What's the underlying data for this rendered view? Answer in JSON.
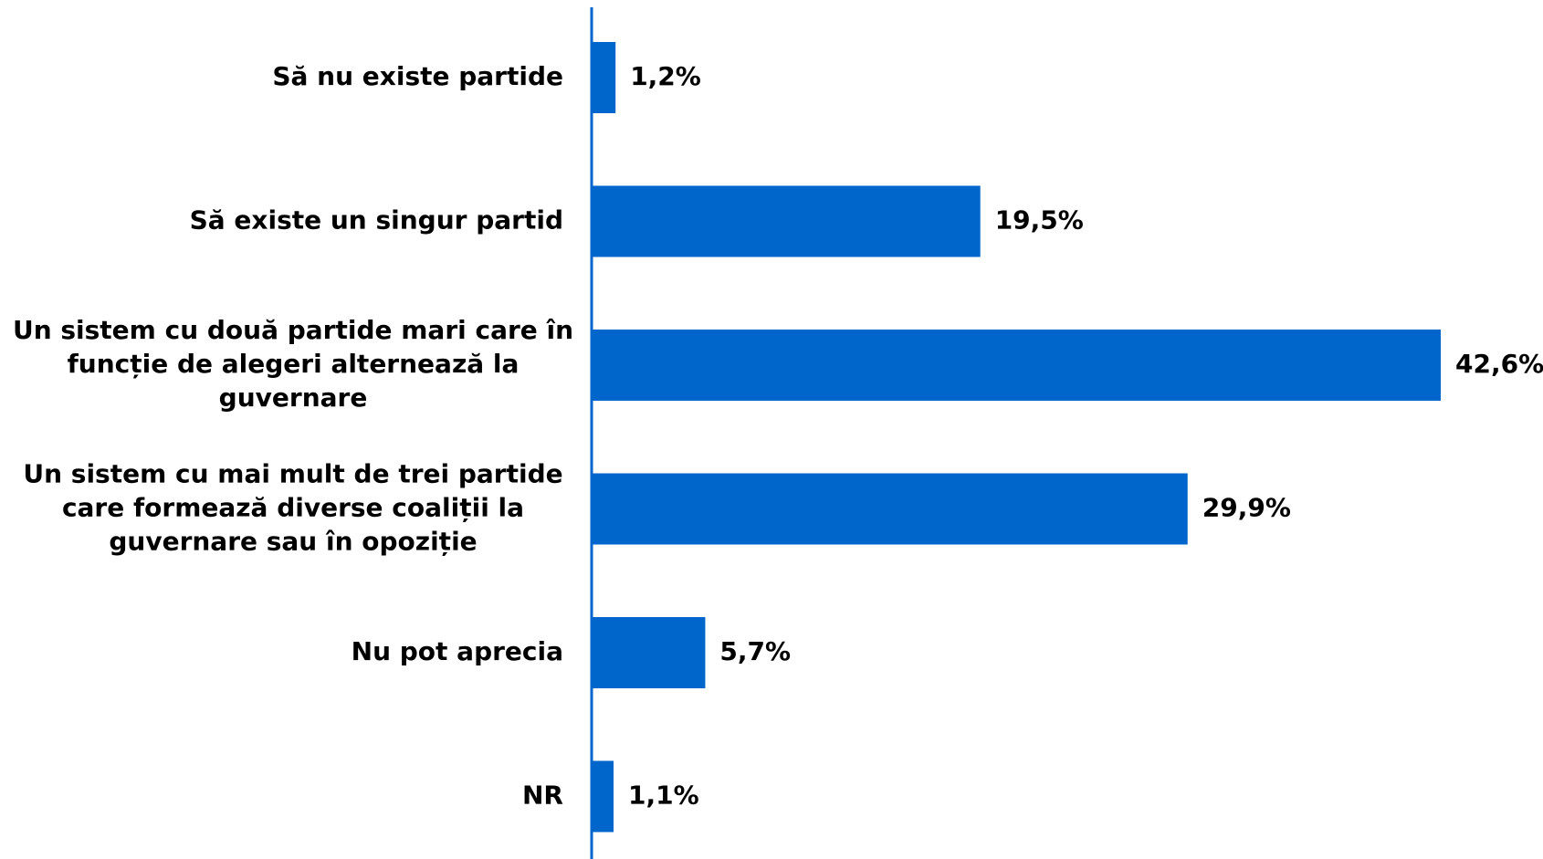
{
  "chart_data": {
    "type": "bar",
    "orientation": "horizontal",
    "categories": [
      "Să nu existe partide",
      "Să existe un singur partid",
      "Un sistem cu două partide mari care în funcție de alegeri alternează la guvernare",
      "Un sistem cu mai mult de trei partide care formează diverse coaliții la guvernare sau în opoziție",
      "Nu pot aprecia",
      "NR"
    ],
    "category_lines": [
      [
        "Să nu existe partide"
      ],
      [
        "Să existe un singur partid"
      ],
      [
        "Un sistem cu două partide mari care în",
        "funcție de alegeri alternează la",
        "guvernare"
      ],
      [
        "Un sistem cu mai mult de trei partide",
        "care formează diverse coaliții la",
        "guvernare sau în opoziție"
      ],
      [
        "Nu pot aprecia"
      ],
      [
        "NR"
      ]
    ],
    "values": [
      1.2,
      19.5,
      42.6,
      29.9,
      5.7,
      1.1
    ],
    "value_labels": [
      "1,2%",
      "19,5%",
      "42,6%",
      "29,9%",
      "5,7%",
      "1,1%"
    ],
    "xlim": [
      0,
      42.6
    ],
    "grid": false,
    "legend": "none",
    "colors": {
      "bar": "#0066CC",
      "axis": "#0066CC",
      "text": "#000000"
    }
  }
}
